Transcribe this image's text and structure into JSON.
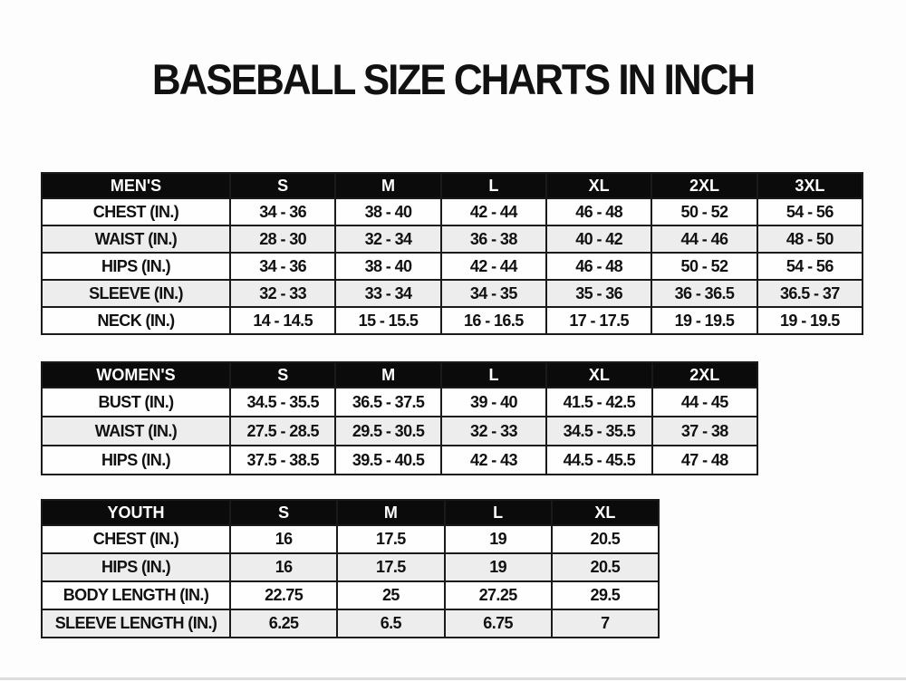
{
  "title": "BASEBALL SIZE CHARTS IN INCH",
  "colors": {
    "page_bg": "#fdfdfd",
    "text": "#111111",
    "header_bg": "#0b0b0b",
    "header_text": "#ffffff",
    "row_bg": "#fefefe",
    "row_alt_bg": "#ededed",
    "border": "#1a1a1a",
    "bottom_edge": "#dcdcdc"
  },
  "chart_data": [
    {
      "type": "table",
      "header_label": "MEN'S",
      "columns": [
        "S",
        "M",
        "L",
        "XL",
        "2XL",
        "3XL"
      ],
      "rows": [
        {
          "label": "CHEST (IN.)",
          "values": [
            "34 - 36",
            "38 - 40",
            "42 - 44",
            "46 - 48",
            "50 - 52",
            "54 - 56"
          ]
        },
        {
          "label": "WAIST (IN.)",
          "values": [
            "28 - 30",
            "32 - 34",
            "36 - 38",
            "40 - 42",
            "44 - 46",
            "48 - 50"
          ]
        },
        {
          "label": "HIPS (IN.)",
          "values": [
            "34 - 36",
            "38 - 40",
            "42 - 44",
            "46 - 48",
            "50 - 52",
            "54 - 56"
          ]
        },
        {
          "label": "SLEEVE (IN.)",
          "values": [
            "32 - 33",
            "33 - 34",
            "34 - 35",
            "35 - 36",
            "36 - 36.5",
            "36.5 - 37"
          ]
        },
        {
          "label": "NECK (IN.)",
          "values": [
            "14 - 14.5",
            "15 - 15.5",
            "16 - 16.5",
            "17 - 17.5",
            "19 - 19.5",
            "19 - 19.5"
          ]
        }
      ]
    },
    {
      "type": "table",
      "header_label": "WOMEN'S",
      "columns": [
        "S",
        "M",
        "L",
        "XL",
        "2XL"
      ],
      "rows": [
        {
          "label": "BUST (IN.)",
          "values": [
            "34.5 - 35.5",
            "36.5 - 37.5",
            "39 - 40",
            "41.5 - 42.5",
            "44 - 45"
          ]
        },
        {
          "label": "WAIST (IN.)",
          "values": [
            "27.5 - 28.5",
            "29.5 - 30.5",
            "32 - 33",
            "34.5 - 35.5",
            "37 - 38"
          ]
        },
        {
          "label": "HIPS (IN.)",
          "values": [
            "37.5 - 38.5",
            "39.5 - 40.5",
            "42 - 43",
            "44.5 - 45.5",
            "47 - 48"
          ]
        }
      ]
    },
    {
      "type": "table",
      "header_label": "YOUTH",
      "columns": [
        "S",
        "M",
        "L",
        "XL"
      ],
      "rows": [
        {
          "label": "CHEST (IN.)",
          "values": [
            "16",
            "17.5",
            "19",
            "20.5"
          ]
        },
        {
          "label": "HIPS (IN.)",
          "values": [
            "16",
            "17.5",
            "19",
            "20.5"
          ]
        },
        {
          "label": "BODY LENGTH (IN.)",
          "values": [
            "22.75",
            "25",
            "27.25",
            "29.5"
          ]
        },
        {
          "label": "SLEEVE LENGTH (IN.)",
          "values": [
            "6.25",
            "6.5",
            "6.75",
            "7"
          ]
        }
      ]
    }
  ]
}
